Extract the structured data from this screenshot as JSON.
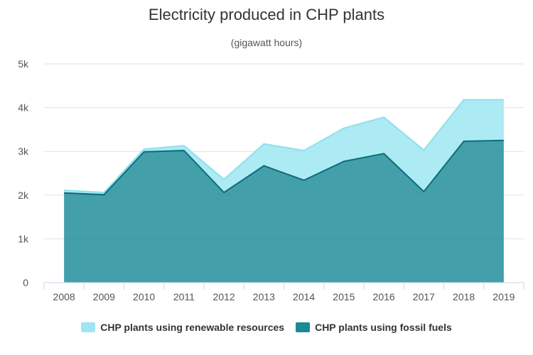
{
  "chart_data": {
    "type": "area",
    "title": "Electricity produced in CHP plants",
    "subtitle": "(gigawatt hours)",
    "categories": [
      "2008",
      "2009",
      "2010",
      "2011",
      "2012",
      "2013",
      "2014",
      "2015",
      "2016",
      "2017",
      "2018",
      "2019"
    ],
    "y_ticks": [
      "0",
      "1k",
      "2k",
      "3k",
      "4k",
      "5k"
    ],
    "ylim": [
      0,
      5000
    ],
    "stacked": true,
    "legend_position": "bottom",
    "grid": true,
    "series": [
      {
        "name": "CHP plants using renewable resources",
        "color": "#9ee6f2",
        "values": [
          60,
          50,
          60,
          110,
          300,
          500,
          680,
          760,
          830,
          950,
          950,
          930
        ]
      },
      {
        "name": "CHP plants using fossil fuels",
        "color": "#1a8a96",
        "values": [
          2050,
          2010,
          2990,
          3020,
          2060,
          2670,
          2340,
          2770,
          2950,
          2080,
          3230,
          3250
        ]
      }
    ]
  }
}
